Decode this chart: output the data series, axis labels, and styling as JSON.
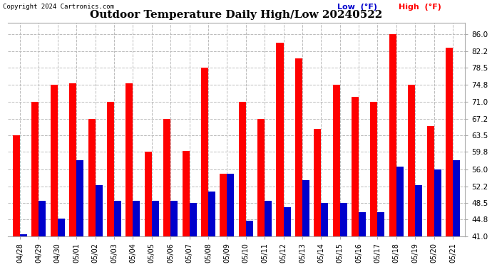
{
  "title": "Outdoor Temperature Daily High/Low 20240522",
  "copyright": "Copyright 2024 Cartronics.com",
  "dates": [
    "04/28",
    "04/29",
    "04/30",
    "05/01",
    "05/02",
    "05/03",
    "05/04",
    "05/05",
    "05/06",
    "05/07",
    "05/08",
    "05/09",
    "05/10",
    "05/11",
    "05/12",
    "05/13",
    "05/14",
    "05/15",
    "05/16",
    "05/17",
    "05/18",
    "05/19",
    "05/20",
    "05/21"
  ],
  "highs": [
    63.5,
    71.0,
    74.8,
    75.0,
    67.2,
    71.0,
    75.0,
    59.8,
    67.2,
    60.0,
    78.5,
    55.0,
    71.0,
    67.2,
    84.0,
    80.5,
    65.0,
    74.8,
    72.0,
    71.0,
    86.0,
    74.8,
    65.5,
    83.0
  ],
  "lows": [
    41.5,
    49.0,
    45.0,
    58.0,
    52.5,
    49.0,
    49.0,
    49.0,
    49.0,
    48.5,
    51.0,
    55.0,
    44.5,
    49.0,
    47.5,
    53.5,
    48.5,
    48.5,
    46.5,
    46.5,
    56.5,
    52.5,
    56.0,
    58.0
  ],
  "high_color": "#ff0000",
  "low_color": "#0000cc",
  "background_color": "#ffffff",
  "grid_color": "#bbbbbb",
  "ylim_min": 41.0,
  "ylim_max": 88.5,
  "yticks": [
    41.0,
    44.8,
    48.5,
    52.2,
    56.0,
    59.8,
    63.5,
    67.2,
    71.0,
    74.8,
    78.5,
    82.2,
    86.0
  ],
  "legend_low_label": "Low  (°F)",
  "legend_high_label": "High  (°F)",
  "bar_width": 0.38
}
